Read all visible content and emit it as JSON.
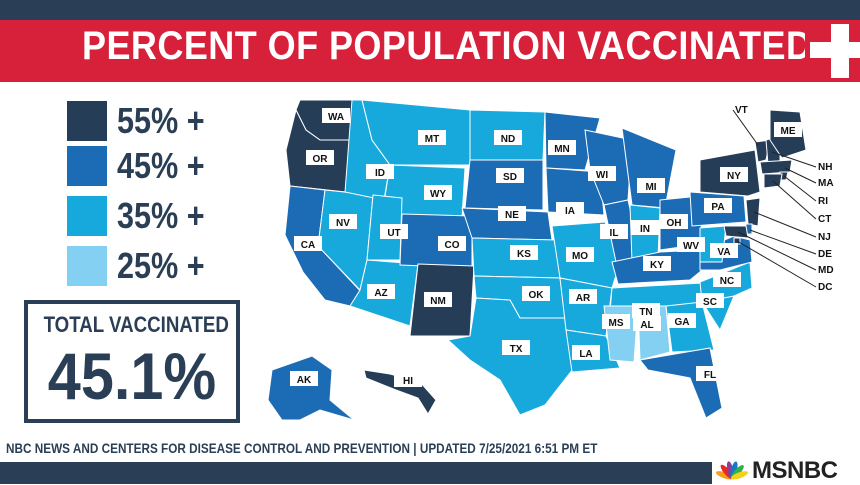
{
  "title": "PERCENT OF POPULATION VACCINATED",
  "legend": [
    {
      "label": "55% +",
      "color": "#263d58"
    },
    {
      "label": "45% +",
      "color": "#1b6cb5"
    },
    {
      "label": "35% +",
      "color": "#18a9dc"
    },
    {
      "label": "25% +",
      "color": "#84d0f2"
    }
  ],
  "total": {
    "label": "TOTAL VACCINATED",
    "value": "45.1%"
  },
  "source": "NBC NEWS AND CENTERS FOR DISEASE CONTROL AND PREVENTION  |  UPDATED 7/25/2021 6:51 PM ET",
  "logo": "MSNBC",
  "states": [
    {
      "abbr": "WA",
      "tier": "55% +"
    },
    {
      "abbr": "OR",
      "tier": "55% +"
    },
    {
      "abbr": "CA",
      "tier": "45% +"
    },
    {
      "abbr": "NV",
      "tier": "35% +"
    },
    {
      "abbr": "ID",
      "tier": "35% +"
    },
    {
      "abbr": "MT",
      "tier": "35% +"
    },
    {
      "abbr": "WY",
      "tier": "35% +"
    },
    {
      "abbr": "UT",
      "tier": "35% +"
    },
    {
      "abbr": "AZ",
      "tier": "35% +"
    },
    {
      "abbr": "CO",
      "tier": "45% +"
    },
    {
      "abbr": "NM",
      "tier": "55% +"
    },
    {
      "abbr": "ND",
      "tier": "35% +"
    },
    {
      "abbr": "SD",
      "tier": "45% +"
    },
    {
      "abbr": "NE",
      "tier": "45% +"
    },
    {
      "abbr": "KS",
      "tier": "35% +"
    },
    {
      "abbr": "OK",
      "tier": "35% +"
    },
    {
      "abbr": "TX",
      "tier": "35% +"
    },
    {
      "abbr": "MN",
      "tier": "45% +"
    },
    {
      "abbr": "IA",
      "tier": "45% +"
    },
    {
      "abbr": "MO",
      "tier": "35% +"
    },
    {
      "abbr": "AR",
      "tier": "35% +"
    },
    {
      "abbr": "LA",
      "tier": "35% +"
    },
    {
      "abbr": "WI",
      "tier": "45% +"
    },
    {
      "abbr": "IL",
      "tier": "45% +"
    },
    {
      "abbr": "MI",
      "tier": "45% +"
    },
    {
      "abbr": "IN",
      "tier": "35% +"
    },
    {
      "abbr": "OH",
      "tier": "45% +"
    },
    {
      "abbr": "KY",
      "tier": "45% +"
    },
    {
      "abbr": "TN",
      "tier": "35% +"
    },
    {
      "abbr": "MS",
      "tier": "25% +"
    },
    {
      "abbr": "AL",
      "tier": "25% +"
    },
    {
      "abbr": "GA",
      "tier": "35% +"
    },
    {
      "abbr": "FL",
      "tier": "45% +"
    },
    {
      "abbr": "SC",
      "tier": "35% +"
    },
    {
      "abbr": "NC",
      "tier": "35% +"
    },
    {
      "abbr": "VA",
      "tier": "45% +"
    },
    {
      "abbr": "WV",
      "tier": "35% +"
    },
    {
      "abbr": "PA",
      "tier": "45% +"
    },
    {
      "abbr": "NY",
      "tier": "55% +"
    },
    {
      "abbr": "VT",
      "tier": "55% +"
    },
    {
      "abbr": "NH",
      "tier": "55% +"
    },
    {
      "abbr": "ME",
      "tier": "55% +"
    },
    {
      "abbr": "MA",
      "tier": "55% +"
    },
    {
      "abbr": "RI",
      "tier": "55% +"
    },
    {
      "abbr": "CT",
      "tier": "55% +"
    },
    {
      "abbr": "NJ",
      "tier": "55% +"
    },
    {
      "abbr": "DE",
      "tier": "45% +"
    },
    {
      "abbr": "MD",
      "tier": "55% +"
    },
    {
      "abbr": "DC",
      "tier": "55% +"
    },
    {
      "abbr": "AK",
      "tier": "45% +"
    },
    {
      "abbr": "HI",
      "tier": "55% +"
    }
  ]
}
